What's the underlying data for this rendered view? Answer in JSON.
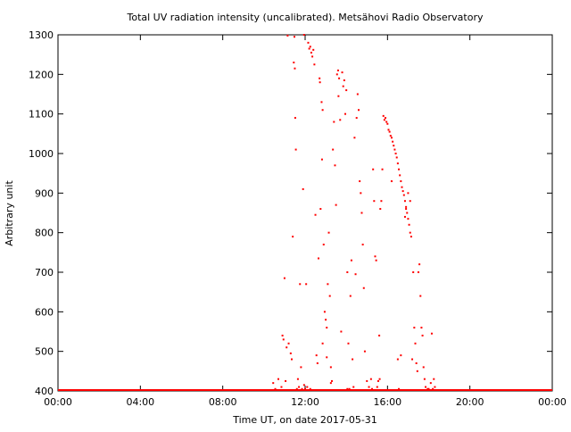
{
  "chart_data": {
    "type": "scatter",
    "title": "Total UV radiation intensity (uncalibrated). Metsähovi Radio Observatory",
    "xlabel": "Time UT, on date 2017-05-31",
    "ylabel": "Arbitrary unit",
    "x_unit": "hours UT",
    "xlim": [
      0,
      24
    ],
    "ylim": [
      400,
      1300
    ],
    "x_ticks": [
      {
        "value": 0,
        "label": "00:00"
      },
      {
        "value": 4,
        "label": "04:00"
      },
      {
        "value": 8,
        "label": "08:00"
      },
      {
        "value": 12,
        "label": "12:00"
      },
      {
        "value": 16,
        "label": "16:00"
      },
      {
        "value": 20,
        "label": "20:00"
      },
      {
        "value": 24,
        "label": "00:00"
      }
    ],
    "y_ticks": [
      {
        "value": 400,
        "label": "400"
      },
      {
        "value": 500,
        "label": "500"
      },
      {
        "value": 600,
        "label": "600"
      },
      {
        "value": 700,
        "label": "700"
      },
      {
        "value": 800,
        "label": "800"
      },
      {
        "value": 900,
        "label": "900"
      },
      {
        "value": 1000,
        "label": "1000"
      },
      {
        "value": 1100,
        "label": "1100"
      },
      {
        "value": 1200,
        "label": "1200"
      },
      {
        "value": 1300,
        "label": "1300"
      }
    ],
    "grid": false,
    "legend": "none",
    "series": [
      {
        "color": "#ff0000",
        "baseline": {
          "value": 400,
          "x_from": 0,
          "x_to": 24
        },
        "points": [
          [
            10.45,
            420
          ],
          [
            10.55,
            405
          ],
          [
            10.7,
            430
          ],
          [
            10.85,
            410
          ],
          [
            10.9,
            540
          ],
          [
            10.95,
            530
          ],
          [
            11.0,
            685
          ],
          [
            11.05,
            425
          ],
          [
            11.1,
            510
          ],
          [
            11.15,
            1298
          ],
          [
            11.2,
            520
          ],
          [
            11.3,
            495
          ],
          [
            11.35,
            480
          ],
          [
            11.4,
            790
          ],
          [
            11.45,
            1230
          ],
          [
            11.48,
            1295
          ],
          [
            11.5,
            1215
          ],
          [
            11.52,
            1090
          ],
          [
            11.55,
            1010
          ],
          [
            11.6,
            405
          ],
          [
            11.65,
            430
          ],
          [
            11.7,
            410
          ],
          [
            11.75,
            670
          ],
          [
            11.8,
            460
          ],
          [
            11.85,
            405
          ],
          [
            11.9,
            910
          ],
          [
            11.95,
            1300
          ],
          [
            12.0,
            405
          ],
          [
            12.05,
            670
          ],
          [
            12.1,
            410
          ],
          [
            12.15,
            1280
          ],
          [
            12.2,
            1265
          ],
          [
            12.25,
            1270
          ],
          [
            12.3,
            1255
          ],
          [
            12.35,
            1245
          ],
          [
            12.4,
            1262
          ],
          [
            12.45,
            1225
          ],
          [
            12.5,
            845
          ],
          [
            12.55,
            490
          ],
          [
            12.6,
            470
          ],
          [
            12.65,
            735
          ],
          [
            12.7,
            1190
          ],
          [
            12.72,
            1180
          ],
          [
            12.75,
            860
          ],
          [
            12.8,
            1130
          ],
          [
            12.82,
            985
          ],
          [
            12.85,
            1110
          ],
          [
            12.9,
            770
          ],
          [
            12.95,
            600
          ],
          [
            13.0,
            580
          ],
          [
            13.05,
            560
          ],
          [
            13.1,
            670
          ],
          [
            13.15,
            800
          ],
          [
            13.2,
            640
          ],
          [
            13.25,
            420
          ],
          [
            13.3,
            425
          ],
          [
            13.35,
            1010
          ],
          [
            13.4,
            1080
          ],
          [
            13.45,
            970
          ],
          [
            13.5,
            870
          ],
          [
            13.55,
            1200
          ],
          [
            13.6,
            1210
          ],
          [
            13.62,
            1145
          ],
          [
            13.65,
            1190
          ],
          [
            13.7,
            1085
          ],
          [
            13.75,
            550
          ],
          [
            13.8,
            1205
          ],
          [
            13.85,
            1170
          ],
          [
            13.9,
            1185
          ],
          [
            13.95,
            1100
          ],
          [
            14.0,
            1160
          ],
          [
            14.05,
            700
          ],
          [
            14.1,
            520
          ],
          [
            14.15,
            405
          ],
          [
            14.2,
            640
          ],
          [
            14.25,
            730
          ],
          [
            14.3,
            480
          ],
          [
            14.35,
            410
          ],
          [
            14.4,
            1040
          ],
          [
            14.45,
            695
          ],
          [
            14.5,
            1090
          ],
          [
            14.55,
            1150
          ],
          [
            14.6,
            1110
          ],
          [
            14.65,
            930
          ],
          [
            14.7,
            900
          ],
          [
            14.75,
            850
          ],
          [
            14.8,
            770
          ],
          [
            14.85,
            660
          ],
          [
            14.9,
            500
          ],
          [
            15.0,
            425
          ],
          [
            15.1,
            410
          ],
          [
            15.2,
            430
          ],
          [
            15.3,
            960
          ],
          [
            15.35,
            880
          ],
          [
            15.4,
            740
          ],
          [
            15.45,
            730
          ],
          [
            15.5,
            410
          ],
          [
            15.55,
            425
          ],
          [
            15.6,
            540
          ],
          [
            15.62,
            430
          ],
          [
            15.65,
            860
          ],
          [
            15.7,
            880
          ],
          [
            15.75,
            960
          ],
          [
            15.8,
            1095
          ],
          [
            15.85,
            1085
          ],
          [
            15.9,
            1090
          ],
          [
            15.95,
            1080
          ],
          [
            16.0,
            1075
          ],
          [
            16.05,
            1060
          ],
          [
            16.1,
            1055
          ],
          [
            16.15,
            1045
          ],
          [
            16.2,
            1040
          ],
          [
            16.25,
            1030
          ],
          [
            16.3,
            1020
          ],
          [
            16.35,
            1010
          ],
          [
            16.4,
            1000
          ],
          [
            16.45,
            990
          ],
          [
            16.5,
            975
          ],
          [
            16.55,
            960
          ],
          [
            16.6,
            945
          ],
          [
            16.65,
            930
          ],
          [
            16.7,
            915
          ],
          [
            16.75,
            905
          ],
          [
            16.8,
            895
          ],
          [
            16.85,
            880
          ],
          [
            16.9,
            865
          ],
          [
            16.95,
            850
          ],
          [
            17.0,
            835
          ],
          [
            17.05,
            820
          ],
          [
            17.1,
            800
          ],
          [
            17.15,
            790
          ],
          [
            17.2,
            480
          ],
          [
            17.25,
            700
          ],
          [
            17.3,
            560
          ],
          [
            17.35,
            520
          ],
          [
            17.4,
            470
          ],
          [
            17.45,
            450
          ],
          [
            17.5,
            700
          ],
          [
            17.55,
            720
          ],
          [
            17.6,
            640
          ],
          [
            17.65,
            560
          ],
          [
            17.7,
            540
          ],
          [
            17.75,
            460
          ],
          [
            17.8,
            430
          ],
          [
            17.85,
            410
          ],
          [
            18.0,
            405
          ],
          [
            18.1,
            420
          ],
          [
            18.2,
            405
          ],
          [
            18.3,
            410
          ],
          [
            16.2,
            930
          ],
          [
            16.5,
            480
          ],
          [
            16.9,
            860
          ],
          [
            16.85,
            840
          ],
          [
            17.0,
            900
          ],
          [
            17.1,
            880
          ],
          [
            16.65,
            490
          ],
          [
            16.55,
            405
          ],
          [
            13.05,
            485
          ],
          [
            12.85,
            520
          ],
          [
            13.25,
            460
          ],
          [
            11.95,
            415
          ],
          [
            12.25,
            405
          ],
          [
            14.05,
            405
          ],
          [
            15.25,
            405
          ],
          [
            17.95,
            405
          ],
          [
            18.25,
            430
          ],
          [
            18.15,
            545
          ]
        ]
      }
    ]
  }
}
